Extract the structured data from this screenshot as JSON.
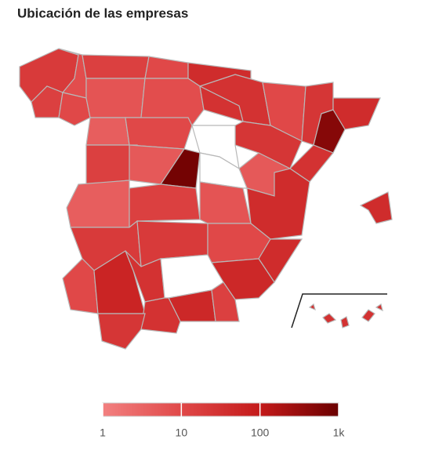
{
  "chart_data": {
    "type": "choropleth",
    "title": "Ubicación de las empresas",
    "values": [
      20,
      8,
      15,
      10,
      15,
      10,
      40,
      30,
      6,
      8,
      30,
      10,
      25,
      40,
      500,
      30,
      25,
      5,
      4,
      10,
      null,
      15,
      5,
      800,
      null,
      4,
      15,
      6,
      40,
      20,
      20,
      10,
      40,
      50,
      10,
      60,
      30,
      null,
      50,
      15,
      30,
      25,
      40,
      30
    ],
    "log_scale": true,
    "clim": [
      1,
      1000
    ],
    "colorscale": [
      "#f28080",
      "#e04848",
      "#c41a1a",
      "#6b0000"
    ],
    "missing_color": "#ffffff",
    "ticks": [
      1,
      10,
      100,
      {
        "value": 1000,
        "label": "1k"
      }
    ]
  }
}
